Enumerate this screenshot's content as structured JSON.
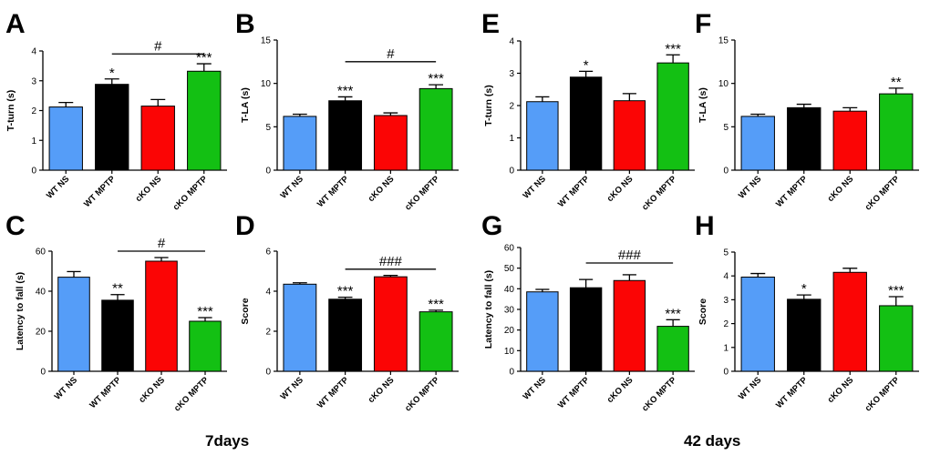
{
  "colors": [
    "#559df8",
    "#000000",
    "#fb0505",
    "#13c013"
  ],
  "group_labels": [
    "7days",
    "42 days"
  ],
  "chart_data": [
    {
      "panel": "A",
      "type": "bar",
      "categories": [
        "WT NS",
        "WT MPTP",
        "cKO NS",
        "cKO MPTP"
      ],
      "values": [
        2.12,
        2.88,
        2.15,
        3.32
      ],
      "errors": [
        0.15,
        0.18,
        0.22,
        0.25
      ],
      "ylabel": "T-turn (s)",
      "ylim": [
        0,
        4
      ],
      "yticks": [
        0,
        1,
        2,
        3,
        4
      ],
      "sig": [
        "",
        "*",
        "",
        "***"
      ],
      "bracket": {
        "from": 1,
        "to": 3,
        "label": "#",
        "value": 3.9
      }
    },
    {
      "panel": "B",
      "type": "bar",
      "categories": [
        "WT NS",
        "WT MPTP",
        "cKO NS",
        "cKO MPTP"
      ],
      "values": [
        6.2,
        8.0,
        6.3,
        9.4
      ],
      "errors": [
        0.25,
        0.45,
        0.3,
        0.45
      ],
      "ylabel": "T-LA (s)",
      "ylim": [
        0,
        15
      ],
      "yticks": [
        0,
        5,
        10,
        15
      ],
      "sig": [
        "",
        "***",
        "",
        "***"
      ],
      "bracket": {
        "from": 1,
        "to": 3,
        "label": "#",
        "value": 12.5
      }
    },
    {
      "panel": "E",
      "type": "bar",
      "categories": [
        "WT NS",
        "WT MPTP",
        "cKO NS",
        "cKO MPTP"
      ],
      "values": [
        2.12,
        2.88,
        2.15,
        3.32
      ],
      "errors": [
        0.15,
        0.18,
        0.22,
        0.25
      ],
      "ylabel": "T-turn (s)",
      "ylim": [
        0,
        4
      ],
      "yticks": [
        0,
        1,
        2,
        3,
        4
      ],
      "sig": [
        "",
        "*",
        "",
        "***"
      ],
      "bracket": null
    },
    {
      "panel": "F",
      "type": "bar",
      "categories": [
        "WT NS",
        "WT MPTP",
        "cKO NS",
        "cKO MPTP"
      ],
      "values": [
        6.2,
        7.2,
        6.8,
        8.8
      ],
      "errors": [
        0.25,
        0.4,
        0.4,
        0.65
      ],
      "ylabel": "T-LA (s)",
      "ylim": [
        0,
        15
      ],
      "yticks": [
        0,
        5,
        10,
        15
      ],
      "sig": [
        "",
        "",
        "",
        "**"
      ],
      "bracket": null
    },
    {
      "panel": "C",
      "type": "bar",
      "categories": [
        "WT NS",
        "WT MPTP",
        "cKO NS",
        "cKO MPTP"
      ],
      "values": [
        47,
        35.5,
        55,
        25
      ],
      "errors": [
        2.8,
        2.8,
        1.8,
        1.8
      ],
      "ylabel": "Latency to fall (s)",
      "ylim": [
        0,
        60
      ],
      "yticks": [
        0,
        20,
        40,
        60
      ],
      "sig": [
        "",
        "**",
        "",
        "***"
      ],
      "bracket": {
        "from": 1,
        "to": 3,
        "label": "#",
        "value": 60
      }
    },
    {
      "panel": "D",
      "type": "bar",
      "categories": [
        "WT NS",
        "WT MPTP",
        "cKO NS",
        "cKO MPTP"
      ],
      "values": [
        4.35,
        3.6,
        4.72,
        2.97
      ],
      "errors": [
        0.07,
        0.1,
        0.07,
        0.08
      ],
      "ylabel": "Score",
      "ylim": [
        0,
        6
      ],
      "yticks": [
        0,
        2,
        4,
        6
      ],
      "sig": [
        "",
        "***",
        "",
        "***"
      ],
      "bracket": {
        "from": 1,
        "to": 3,
        "label": "###",
        "value": 5.1
      }
    },
    {
      "panel": "G",
      "type": "bar",
      "categories": [
        "WT NS",
        "WT MPTP",
        "cKO NS",
        "cKO MPTP"
      ],
      "values": [
        38.5,
        40.5,
        44,
        21.8
      ],
      "errors": [
        1.2,
        4.0,
        2.8,
        3.2
      ],
      "ylabel": "Latency to fall (s)",
      "ylim": [
        0,
        60
      ],
      "yticks": [
        0,
        10,
        20,
        30,
        40,
        50,
        60
      ],
      "sig": [
        "",
        "",
        "",
        "***"
      ],
      "bracket": {
        "from": 1,
        "to": 3,
        "label": "###",
        "value": 52.5
      }
    },
    {
      "panel": "H",
      "type": "bar",
      "categories": [
        "WT NS",
        "WT MPTP",
        "cKO NS",
        "cKO MPTP"
      ],
      "values": [
        3.95,
        3.02,
        4.15,
        2.75
      ],
      "errors": [
        0.15,
        0.18,
        0.17,
        0.38
      ],
      "ylabel": "Score",
      "ylim": [
        0,
        5
      ],
      "yticks": [
        0,
        1,
        2,
        3,
        4,
        5
      ],
      "sig": [
        "",
        "*",
        "",
        "***"
      ],
      "bracket": null
    }
  ]
}
